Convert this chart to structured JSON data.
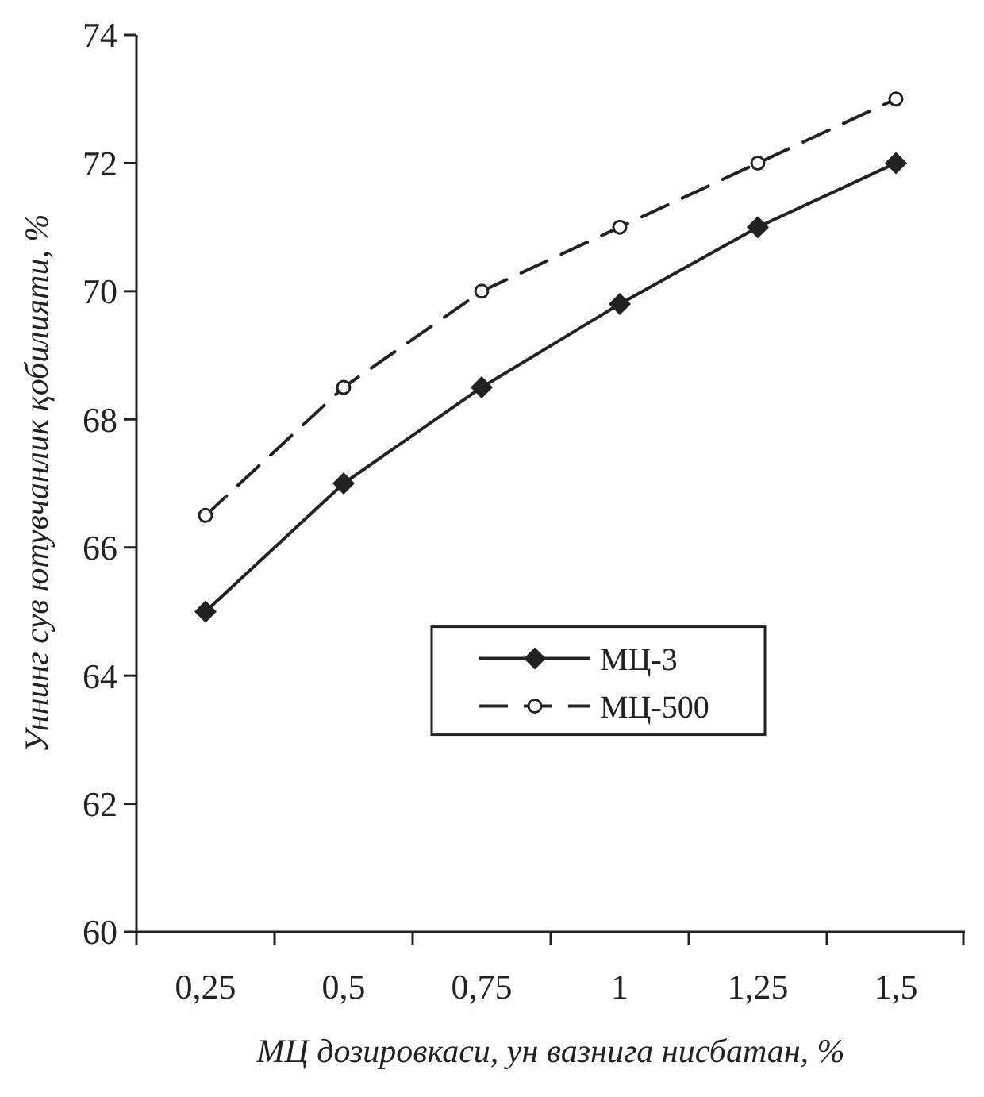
{
  "chart_data": {
    "type": "line",
    "xlabel": "МЦ дозировкаси, ун вазнига нисбатан, %",
    "ylabel": "Уннинг сув ютувчанлик қобилияти, %",
    "categories": [
      "0,25",
      "0,5",
      "0,75",
      "1",
      "1,25",
      "1,5"
    ],
    "ylim": [
      60,
      74
    ],
    "yticks": [
      60,
      62,
      64,
      66,
      68,
      70,
      72,
      74
    ],
    "grid": false,
    "legend": "center",
    "series": [
      {
        "name": "МЦ-3",
        "color": "#222222",
        "marker": "diamond",
        "line_style": "solid",
        "values": [
          65,
          67,
          68.5,
          69.8,
          71,
          72
        ]
      },
      {
        "name": "МЦ-500",
        "color": "#222222",
        "marker": "circle",
        "line_style": "dashed",
        "values": [
          66.5,
          68.5,
          70,
          71,
          72,
          73
        ]
      }
    ]
  }
}
